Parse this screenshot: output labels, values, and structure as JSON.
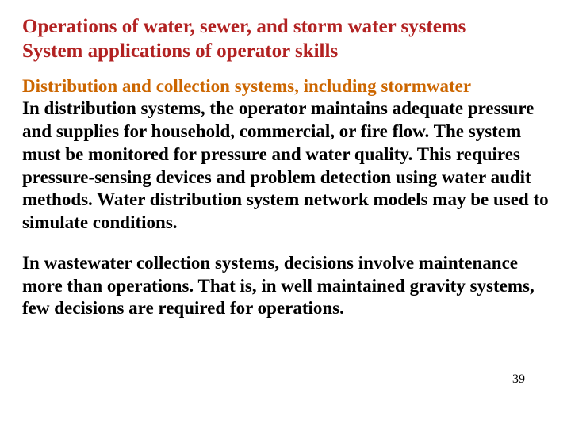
{
  "titleLine1": "Operations of water, sewer, and storm water systems",
  "titleLine2": " System applications of operator skills",
  "sectionHeading": "Distribution and collection systems, including stormwater",
  "paragraph1": "In distribution systems, the operator maintains adequate pressure and supplies for household, commercial, or fire flow. The system must be monitored for pressure and water quality. This requires pressure-sensing devices and problem detection using water audit methods. Water distribution system network models may be used to simulate conditions.",
  "paragraph2": "In wastewater collection systems, decisions involve maintenance more than operations. That is, in well maintained gravity systems, few decisions are required for operations.",
  "pageNumber": "39",
  "style": {
    "titleColor": "#b22222",
    "headingColor": "#cc6600",
    "bodyColor": "#000000",
    "pageNumColor": "#000000",
    "titleFontSizePx": 25,
    "headingFontSizePx": 23,
    "bodyFontSizePx": 23,
    "pageNumFontSizePx": 16,
    "pageNumRightPx": 58,
    "pageNumBottomPx": 52
  }
}
